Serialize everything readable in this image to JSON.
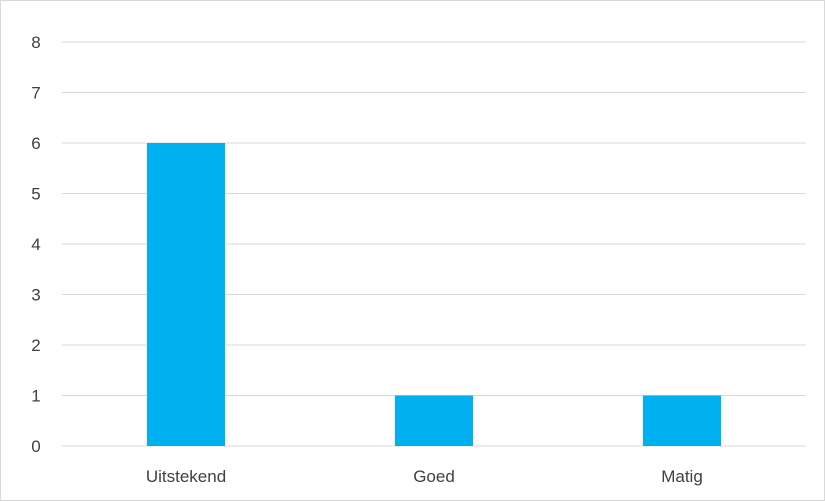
{
  "chart_data": {
    "type": "bar",
    "title": "",
    "xlabel": "",
    "ylabel": "",
    "categories": [
      "Uitstekend",
      "Goed",
      "Matig"
    ],
    "values": [
      6,
      1,
      1
    ],
    "ylim": [
      0,
      8
    ],
    "yticks": [
      "0",
      "1",
      "2",
      "3",
      "4",
      "5",
      "6",
      "7",
      "8"
    ],
    "grid": true,
    "legend": "none",
    "bar_color": "#00b0f0",
    "grid_color": "#d9d9d9",
    "text_color": "#404040"
  }
}
